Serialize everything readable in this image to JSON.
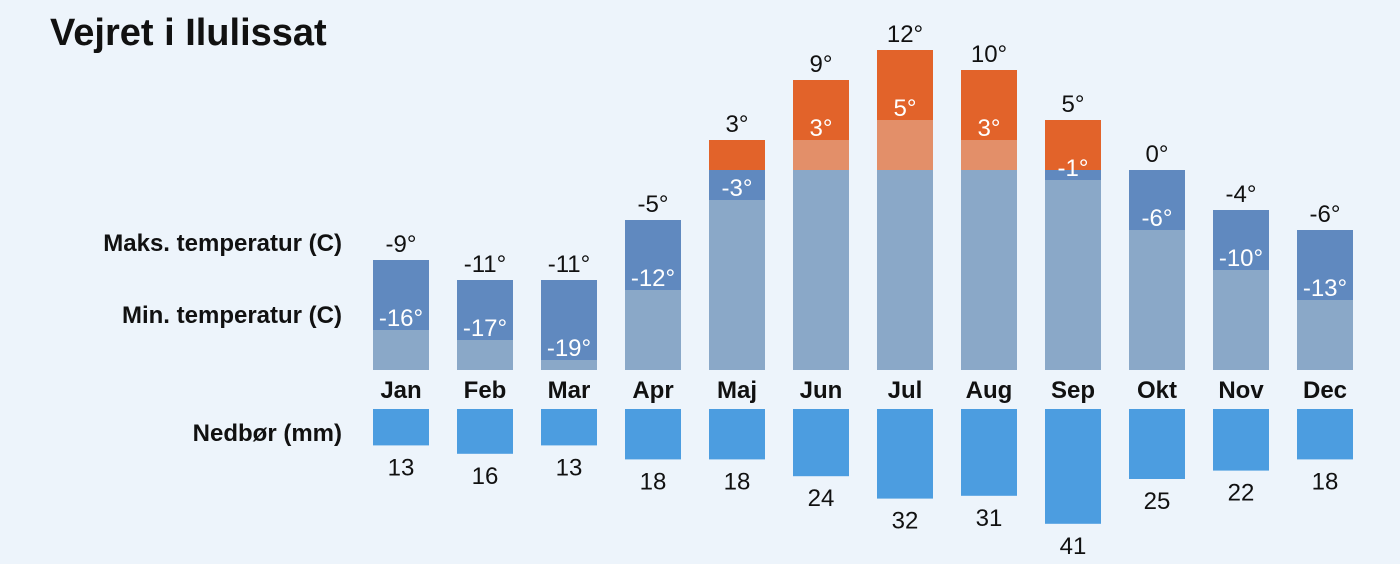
{
  "chart_data": {
    "type": "bar",
    "title": "Vejret i Ilulissat",
    "categories": [
      "Jan",
      "Feb",
      "Mar",
      "Apr",
      "Maj",
      "Jun",
      "Jul",
      "Aug",
      "Sep",
      "Okt",
      "Nov",
      "Dec"
    ],
    "series": [
      {
        "name": "Maks. temperatur (C)",
        "values": [
          -9,
          -11,
          -11,
          -5,
          3,
          9,
          12,
          10,
          5,
          0,
          -4,
          -6
        ]
      },
      {
        "name": "Min. temperatur (C)",
        "values": [
          -16,
          -17,
          -19,
          -12,
          -3,
          3,
          5,
          3,
          -1,
          -6,
          -10,
          -13
        ]
      },
      {
        "name": "Nedbør (mm)",
        "values": [
          13,
          16,
          13,
          18,
          18,
          24,
          32,
          31,
          41,
          25,
          22,
          18
        ]
      }
    ],
    "temp_ylim": [
      -20,
      12
    ],
    "unit_suffix": "°",
    "colors": {
      "background": "#edf4fb",
      "warm": "#e2632a",
      "warm_light": "#e38f69",
      "cold": "#6089bf",
      "cold_light": "#8aa8c8",
      "precip": "#4c9de0"
    }
  }
}
